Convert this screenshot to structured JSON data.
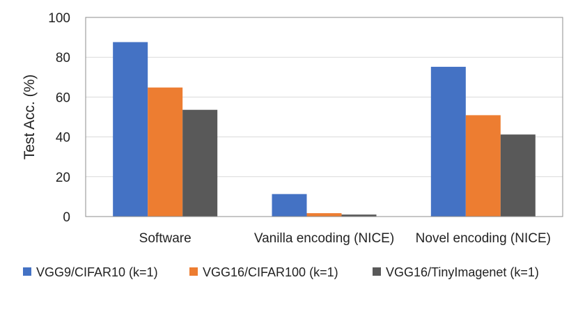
{
  "chart_data": {
    "type": "bar",
    "categories": [
      "Software",
      "Vanilla encoding (NICE)",
      "Novel encoding (NICE)"
    ],
    "series": [
      {
        "name": "VGG9/CIFAR10 (k=1)",
        "color": "#4472C4",
        "values": [
          87.6,
          11.3,
          75.2
        ]
      },
      {
        "name": "VGG16/CIFAR100 (k=1)",
        "color": "#ED7D31",
        "values": [
          64.8,
          1.7,
          50.9
        ]
      },
      {
        "name": "VGG16/TinyImagenet (k=1)",
        "color": "#595959",
        "values": [
          53.6,
          1.0,
          41.2
        ]
      }
    ],
    "yticks": [
      0,
      20,
      40,
      60,
      80,
      100
    ],
    "ylim": [
      0,
      100
    ],
    "ylabel": "Test Acc. (%)",
    "xlabel": "",
    "title": "",
    "grid": true,
    "legend_position": "bottom"
  }
}
